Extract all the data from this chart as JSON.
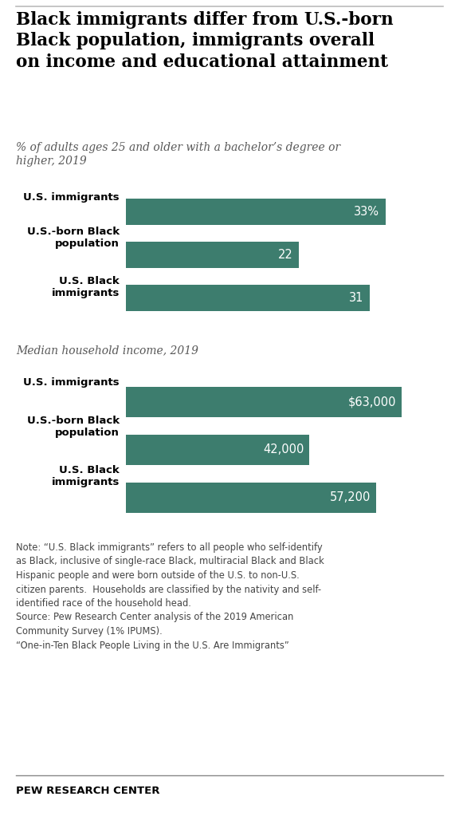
{
  "title": "Black immigrants differ from U.S.-born\nBlack population, immigrants overall\non income and educational attainment",
  "subtitle1": "% of adults ages 25 and older with a bachelor’s degree or\nhigher, 2019",
  "subtitle2": "Median household income, 2019",
  "chart1_labels": [
    "U.S. immigrants",
    "U.S.-born Black\npopulation",
    "U.S. Black\nimmigrants"
  ],
  "chart1_values": [
    33,
    22,
    31
  ],
  "chart1_display": [
    "33%",
    "22",
    "31"
  ],
  "chart2_labels": [
    "U.S. immigrants",
    "U.S.-born Black\npopulation",
    "U.S. Black\nimmigrants"
  ],
  "chart2_values": [
    63000,
    42000,
    57200
  ],
  "chart2_display": [
    "$63,000",
    "42,000",
    "57,200"
  ],
  "bar_color": "#3d7d6e",
  "text_color": "#000000",
  "note_text": "Note: “U.S. Black immigrants” refers to all people who self-identify\nas Black, inclusive of single-race Black, multiracial Black and Black\nHispanic people and were born outside of the U.S. to non-U.S.\ncitizen parents.  Households are classified by the nativity and self-\nidentified race of the household head.\nSource: Pew Research Center analysis of the 2019 American\nCommunity Survey (1% IPUMS).\n“One-in-Ten Black People Living in the U.S. Are Immigrants”",
  "footer": "PEW RESEARCH CENTER",
  "background_color": "#ffffff",
  "title_fontsize": 15.5,
  "subtitle_fontsize": 10.0,
  "label_fontsize": 9.5,
  "bar_label_fontsize": 10.5,
  "note_fontsize": 8.3
}
